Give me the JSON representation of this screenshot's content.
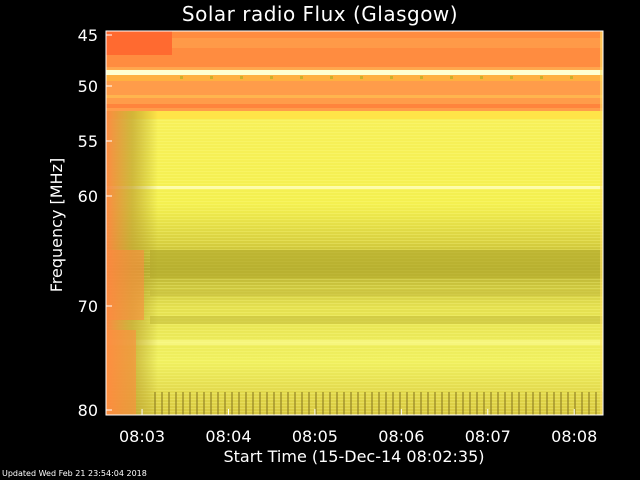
{
  "title": "Solar radio Flux (Glasgow)",
  "footer": "Updated Wed Feb 21 23:54:04 2018",
  "chart_data": {
    "type": "heatmap",
    "title": "Solar radio Flux (Glasgow)",
    "xlabel": "Start Time (15-Dec-14 08:02:35)",
    "ylabel": "Frequency [MHz]",
    "x_ticks": [
      "08:03",
      "08:04",
      "08:05",
      "08:06",
      "08:07",
      "08:08"
    ],
    "x_tick_minutes": [
      0.417,
      1.417,
      2.417,
      3.417,
      4.417,
      5.417
    ],
    "xlim_minutes": [
      0,
      5.75
    ],
    "y_ticks": [
      45,
      50,
      55,
      60,
      70,
      80
    ],
    "ylim": [
      45,
      80
    ],
    "grid": false,
    "colors": {
      "background": "#000000",
      "frame": "#ffffff",
      "high_intensity": "#ff8c3c",
      "mid_intensity": "#ffd040",
      "low_intensity": "#f0f050",
      "dark_band": "#a8a028"
    }
  }
}
